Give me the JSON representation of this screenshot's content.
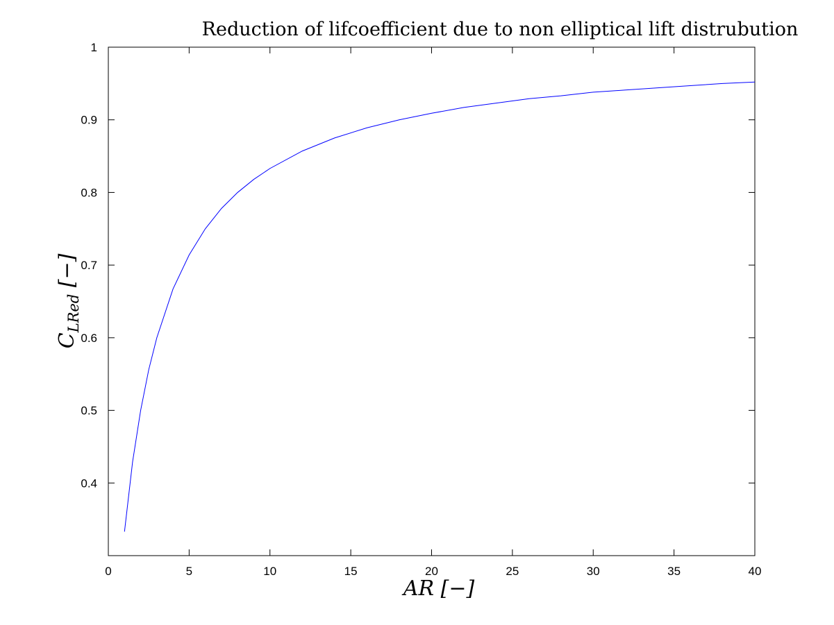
{
  "chart_data": {
    "type": "line",
    "title": "Reduction of lifcoefficient due to non elliptical lift distrubution",
    "xlabel": "AR [−]",
    "ylabel": "C_LRed [−]",
    "xlim": [
      0,
      40
    ],
    "ylim": [
      0.3,
      1.0
    ],
    "x_ticks": [
      0,
      5,
      10,
      15,
      20,
      25,
      30,
      35,
      40
    ],
    "y_ticks": [
      0.4,
      0.5,
      0.6,
      0.7,
      0.8,
      0.9,
      1.0
    ],
    "x_tick_labels": [
      "0",
      "5",
      "10",
      "15",
      "20",
      "25",
      "30",
      "35",
      "40"
    ],
    "y_tick_labels": [
      "0.4",
      "0.5",
      "0.6",
      "0.7",
      "0.8",
      "0.9",
      "1"
    ],
    "grid": false,
    "series": [
      {
        "color": "#0000ff",
        "x": [
          1,
          1.5,
          2,
          2.5,
          3,
          4,
          5,
          6,
          7,
          8,
          9,
          10,
          12,
          14,
          16,
          18,
          20,
          22,
          24,
          26,
          28,
          30,
          32,
          34,
          36,
          38,
          40
        ],
        "y": [
          0.333,
          0.429,
          0.5,
          0.556,
          0.6,
          0.667,
          0.714,
          0.75,
          0.778,
          0.8,
          0.818,
          0.833,
          0.857,
          0.875,
          0.889,
          0.9,
          0.909,
          0.917,
          0.923,
          0.929,
          0.933,
          0.938,
          0.941,
          0.944,
          0.947,
          0.95,
          0.952
        ]
      }
    ]
  }
}
